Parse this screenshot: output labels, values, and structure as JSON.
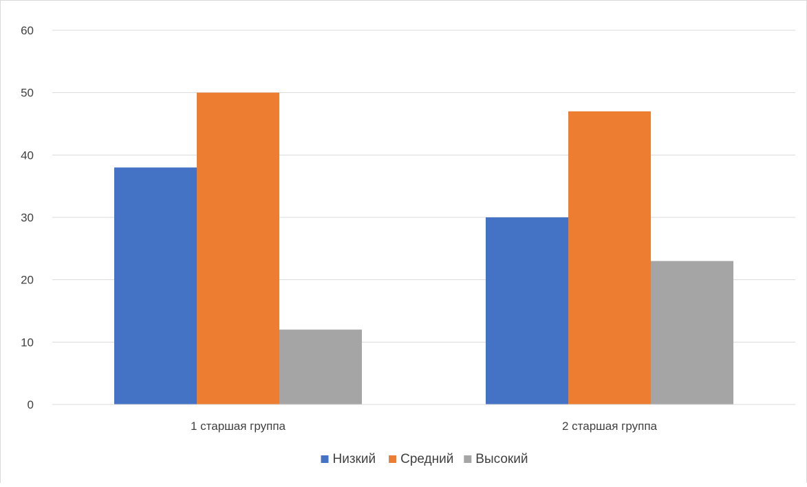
{
  "chart_data": {
    "type": "bar",
    "categories": [
      "1 старшая группа",
      "2 старшая группа"
    ],
    "series": [
      {
        "name": "Низкий",
        "values": [
          38,
          30
        ],
        "color": "#4472c4"
      },
      {
        "name": "Средний",
        "values": [
          50,
          47
        ],
        "color": "#ed7d31"
      },
      {
        "name": "Высокий",
        "values": [
          12,
          23
        ],
        "color": "#a5a5a5"
      }
    ],
    "title": "",
    "xlabel": "",
    "ylabel": "",
    "ylim": [
      0,
      60
    ],
    "yticks": [
      0,
      10,
      20,
      30,
      40,
      50,
      60
    ],
    "grid": true,
    "legend_position": "bottom"
  }
}
